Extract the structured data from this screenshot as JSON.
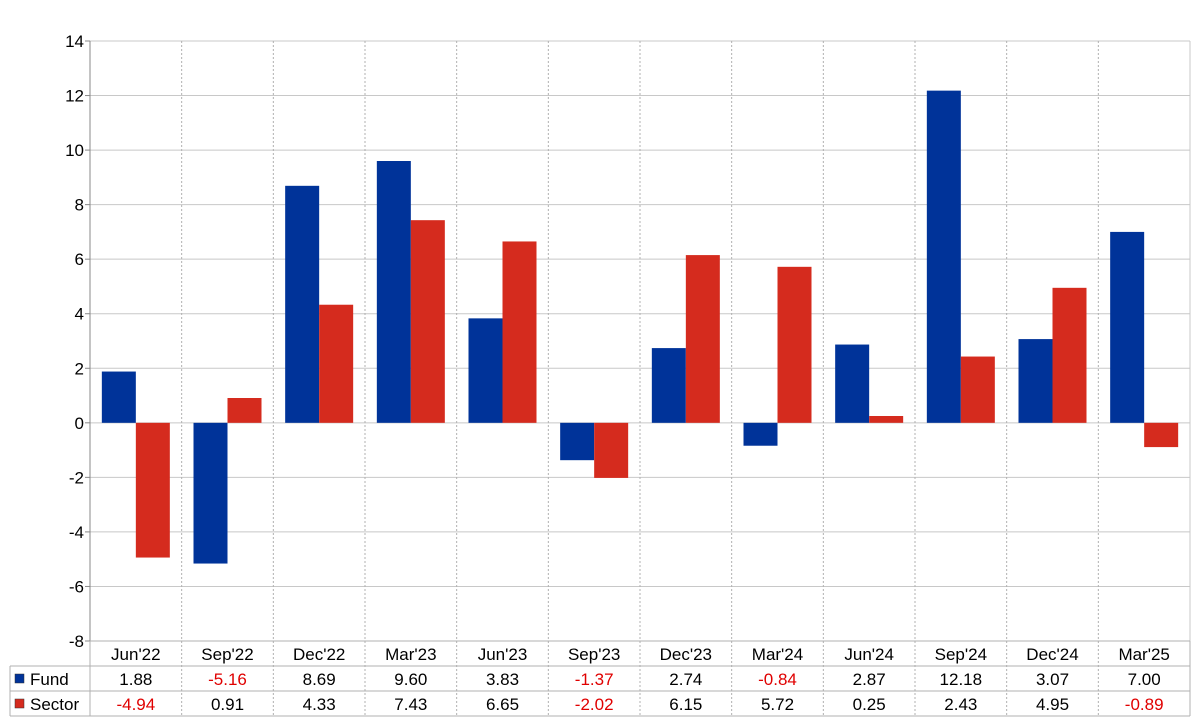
{
  "chart_data": {
    "type": "bar",
    "title": "",
    "xlabel": "",
    "ylabel": "",
    "ylim": [
      -8,
      14
    ],
    "yticks": [
      14,
      12,
      10,
      8,
      6,
      4,
      2,
      0,
      -2,
      -4,
      -6,
      -8
    ],
    "yticks_labels": [
      "14",
      "12",
      "10",
      "8",
      "6",
      "4",
      "2",
      "0",
      "-2",
      "-4",
      "-6",
      "-8"
    ],
    "grid": true,
    "legend_position": "table-below",
    "categories": [
      "Jun'22",
      "Sep'22",
      "Dec'22",
      "Mar'23",
      "Jun'23",
      "Sep'23",
      "Dec'23",
      "Mar'24",
      "Jun'24",
      "Sep'24",
      "Dec'24",
      "Mar'25"
    ],
    "series": [
      {
        "name": "Fund",
        "color": "#003399",
        "values": [
          1.88,
          -5.16,
          8.69,
          9.6,
          3.83,
          -1.37,
          2.74,
          -0.84,
          2.87,
          12.18,
          3.07,
          7.0
        ],
        "labels": [
          "1.88",
          "-5.16",
          "8.69",
          "9.60",
          "3.83",
          "-1.37",
          "2.74",
          "-0.84",
          "2.87",
          "12.18",
          "3.07",
          "7.00"
        ]
      },
      {
        "name": "Sector",
        "color": "#d52b1e",
        "values": [
          -4.94,
          0.91,
          4.33,
          7.43,
          6.65,
          -2.02,
          6.15,
          5.72,
          0.25,
          2.43,
          4.95,
          -0.89
        ],
        "labels": [
          "-4.94",
          "0.91",
          "4.33",
          "7.43",
          "6.65",
          "-2.02",
          "6.15",
          "5.72",
          "0.25",
          "2.43",
          "4.95",
          "-0.89"
        ]
      }
    ],
    "negative_label_color": "#e00000",
    "positive_label_color": "#000000"
  }
}
